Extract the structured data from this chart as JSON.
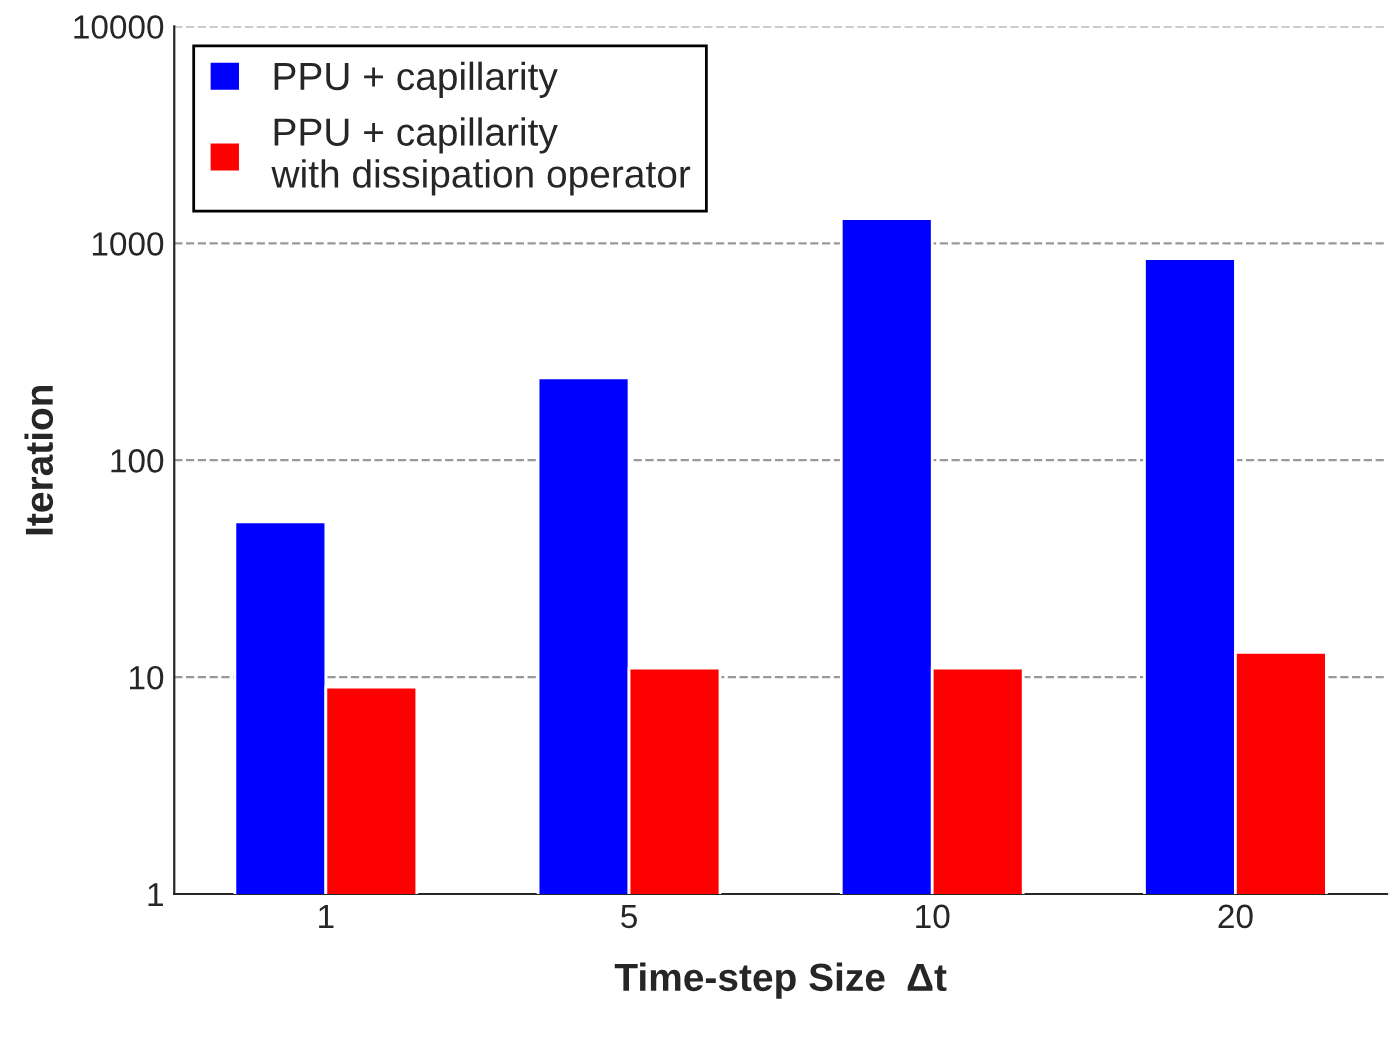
{
  "chart_data": {
    "type": "bar",
    "xlabel": "Time-step Size  Δt",
    "ylabel": "Iteration",
    "categories": [
      "1",
      "5",
      "10",
      "20"
    ],
    "series": [
      {
        "name": "PPU + capillarity",
        "color": "#0000ff",
        "values": [
          52,
          240,
          1300,
          850
        ]
      },
      {
        "name": "PPU + capillarity\nwith dissipation operator",
        "color": "#ff0000",
        "values": [
          9,
          11,
          11,
          13
        ]
      }
    ],
    "log": true,
    "ylim": [
      1,
      10000
    ],
    "yticks": [
      1,
      10,
      100,
      1000,
      10000
    ],
    "grid": "y",
    "legend": "top left"
  }
}
